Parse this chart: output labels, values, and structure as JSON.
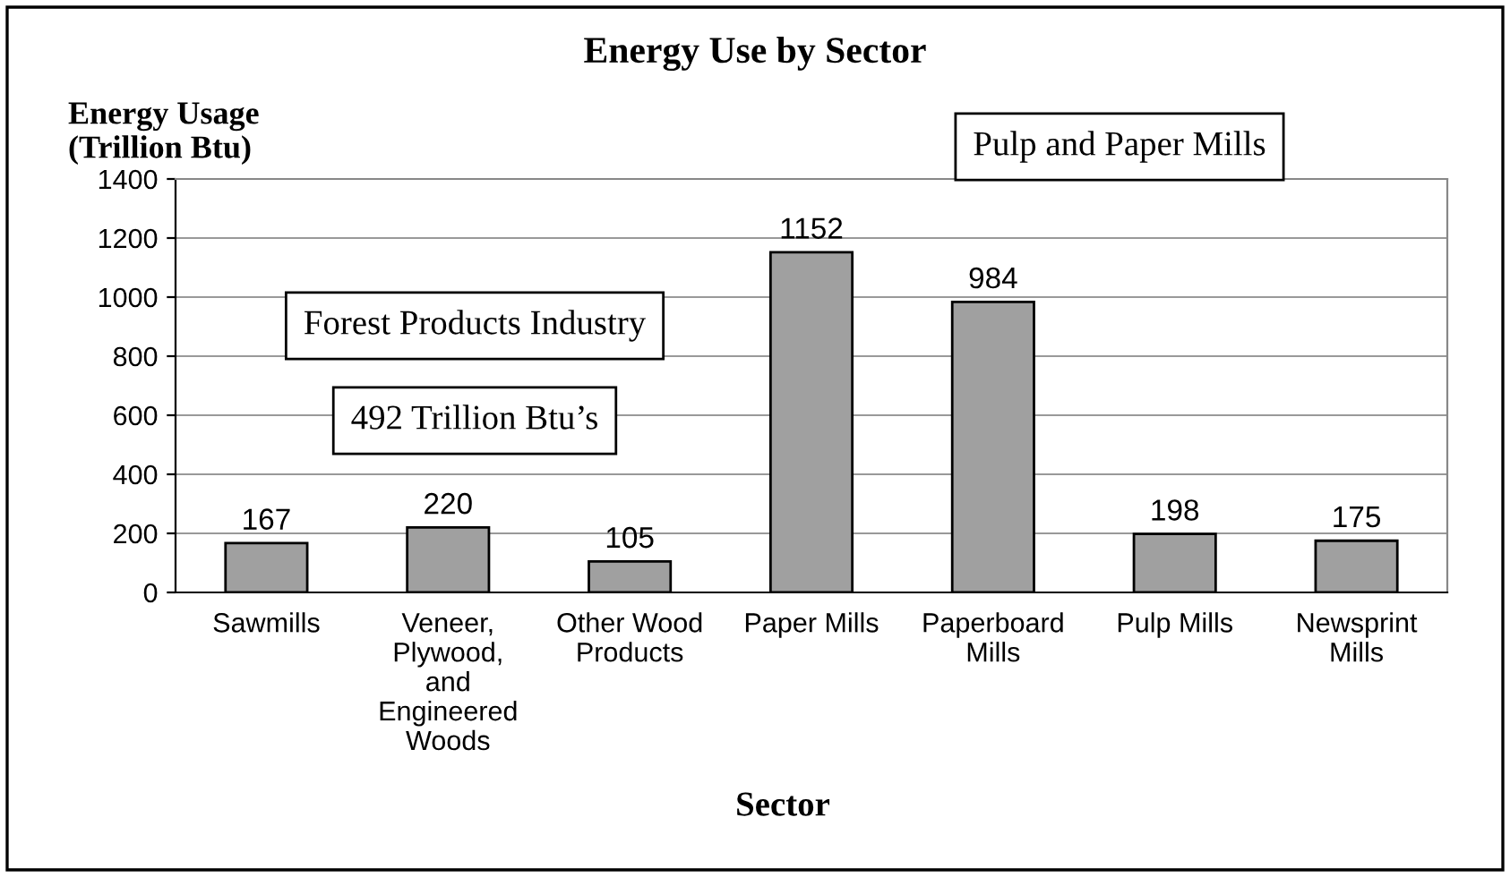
{
  "chart_data": {
    "type": "bar",
    "title": "Energy Use by Sector",
    "xlabel": "Sector",
    "ylabel": "Energy Usage\n(Trillion Btu)",
    "categories": [
      "Sawmills",
      "Veneer,\nPlywood,\nand\nEngineered\nWoods",
      "Other Wood\nProducts",
      "Paper Mills",
      "Paperboard\nMills",
      "Pulp Mills",
      "Newsprint\nMills"
    ],
    "values": [
      167,
      220,
      105,
      1152,
      984,
      198,
      175
    ],
    "color": "#a0a0a0",
    "ylim": [
      0,
      1400
    ],
    "yticks": [
      0,
      200,
      400,
      600,
      800,
      1000,
      1200,
      1400
    ],
    "grid": "y",
    "data_labels": true,
    "legend": false,
    "annotations": [
      "Pulp and Paper Mills",
      "Forest Products Industry",
      "492 Trillion Btu’s"
    ]
  }
}
